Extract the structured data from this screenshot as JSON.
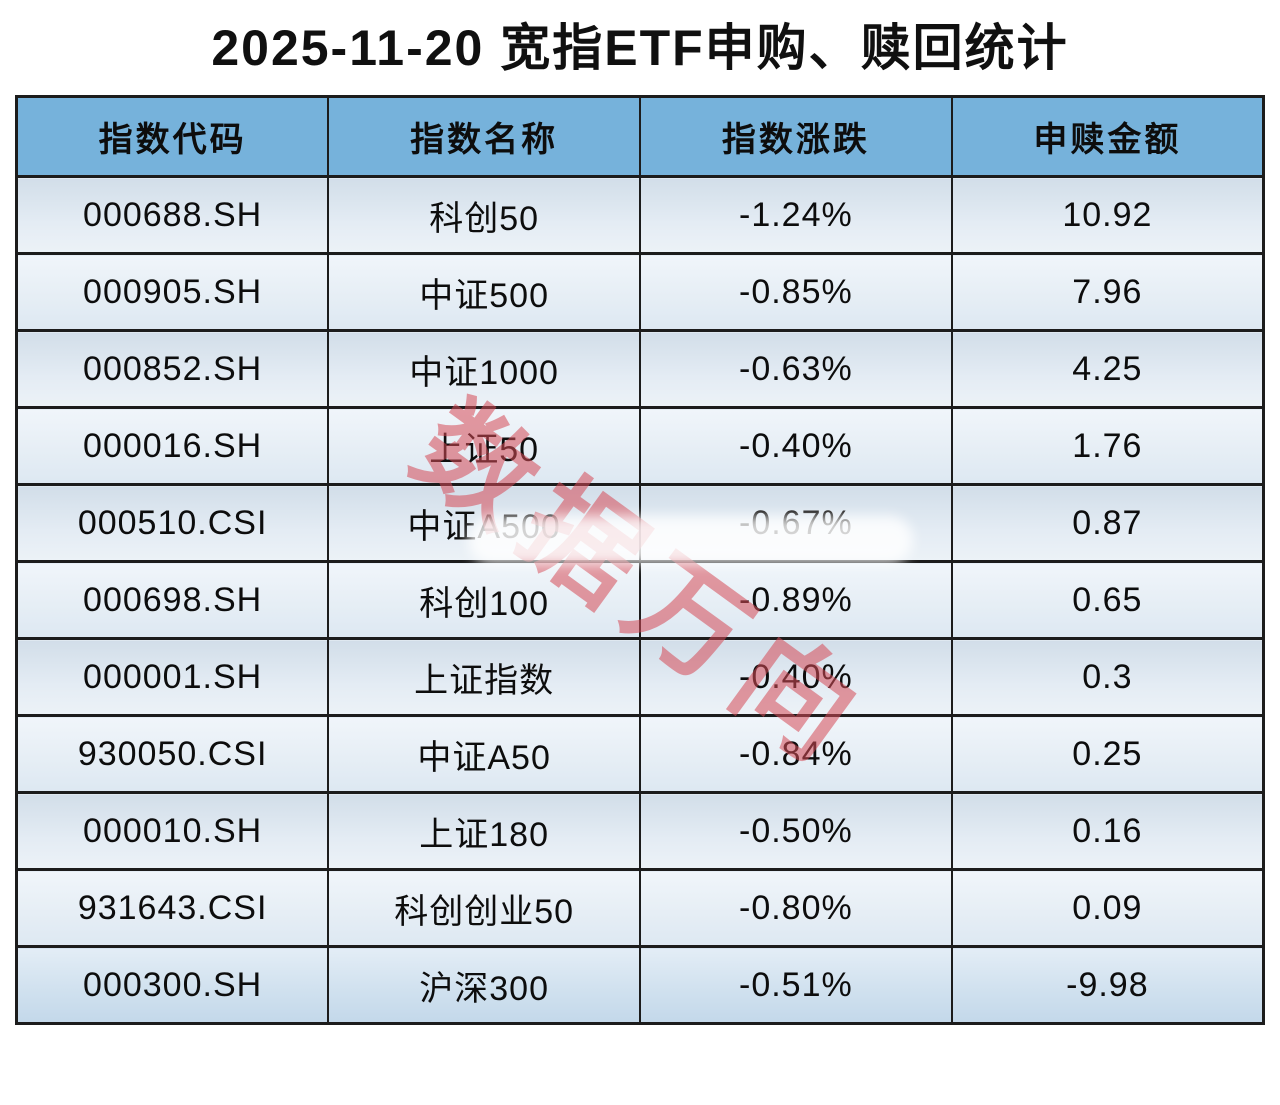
{
  "title": "2025-11-20 宽指ETF申购、赎回统计",
  "watermark": "数据万向",
  "colors": {
    "header_bg": "#76b2db",
    "border": "#1c1c1c",
    "watermark": "#d64b57",
    "row_odd": "#d7e2ed",
    "row_even": "#edf3f8",
    "row_last": "#c3d8ea"
  },
  "chart_data": {
    "type": "table",
    "title": "2025-11-20 宽指ETF申购、赎回统计",
    "columns": [
      "指数代码",
      "指数名称",
      "指数涨跌",
      "申赎金额"
    ],
    "rows": [
      {
        "code": "000688.SH",
        "name": "科创50",
        "change": "-1.24%",
        "amount": "10.92"
      },
      {
        "code": "000905.SH",
        "name": "中证500",
        "change": "-0.85%",
        "amount": "7.96"
      },
      {
        "code": "000852.SH",
        "name": "中证1000",
        "change": "-0.63%",
        "amount": "4.25"
      },
      {
        "code": "000016.SH",
        "name": "上证50",
        "change": "-0.40%",
        "amount": "1.76"
      },
      {
        "code": "000510.CSI",
        "name": "中证A500",
        "change": "-0.67%",
        "amount": "0.87"
      },
      {
        "code": "000698.SH",
        "name": "科创100",
        "change": "-0.89%",
        "amount": "0.65"
      },
      {
        "code": "000001.SH",
        "name": "上证指数",
        "change": "-0.40%",
        "amount": "0.3"
      },
      {
        "code": "930050.CSI",
        "name": "中证A50",
        "change": "-0.84%",
        "amount": "0.25"
      },
      {
        "code": "000010.SH",
        "name": "上证180",
        "change": "-0.50%",
        "amount": "0.16"
      },
      {
        "code": "931643.CSI",
        "name": "科创创业50",
        "change": "-0.80%",
        "amount": "0.09"
      },
      {
        "code": "000300.SH",
        "name": "沪深300",
        "change": "-0.51%",
        "amount": "-9.98"
      }
    ]
  }
}
